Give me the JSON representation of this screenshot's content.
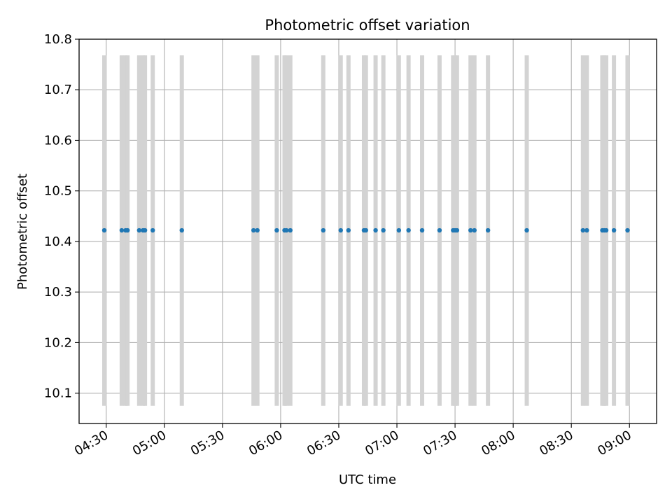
{
  "chart_data": {
    "type": "scatter",
    "title": "Photometric offset variation",
    "xlabel": "UTC time",
    "ylabel": "Photometric offset",
    "x_axis": "time",
    "xlim": [
      "04:16",
      "09:14"
    ],
    "ylim": [
      10.04,
      10.8
    ],
    "x_ticks": [
      "04:30",
      "05:00",
      "05:30",
      "06:00",
      "06:30",
      "07:00",
      "07:30",
      "08:00",
      "08:30",
      "09:00"
    ],
    "y_ticks": [
      "10.1",
      "10.2",
      "10.3",
      "10.4",
      "10.5",
      "10.6",
      "10.7",
      "10.8"
    ],
    "grid": true,
    "x_ticklabel_rotation": "30 degrees",
    "point_color": "#1f77b4",
    "error_bar_color": "#d3d3d3",
    "series": [
      {
        "offset": 10.422,
        "error_low": 10.075,
        "error_high": 10.768,
        "x": [
          "04:29",
          "04:38",
          "04:40",
          "04:41",
          "04:47",
          "04:49",
          "04:50",
          "04:54",
          "05:09",
          "05:46",
          "05:48",
          "05:58",
          "06:02",
          "06:03",
          "06:05",
          "06:22",
          "06:31",
          "06:35",
          "06:43",
          "06:44",
          "06:49",
          "06:53",
          "07:01",
          "07:06",
          "07:13",
          "07:22",
          "07:29",
          "07:30",
          "07:31",
          "07:38",
          "07:40",
          "07:47",
          "08:07",
          "08:36",
          "08:38",
          "08:46",
          "08:47",
          "08:48",
          "08:52",
          "08:59"
        ]
      }
    ]
  }
}
